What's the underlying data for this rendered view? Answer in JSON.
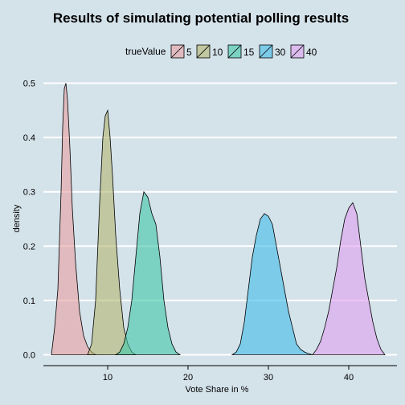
{
  "chart_data": {
    "type": "area",
    "title": "Results of simulating potential polling results",
    "xlabel": "Vote Share in %",
    "ylabel": "density",
    "xlim": [
      2,
      46
    ],
    "ylim": [
      -0.02,
      0.52
    ],
    "xticks": [
      10,
      20,
      30,
      40
    ],
    "yticks": [
      0.0,
      0.1,
      0.2,
      0.3,
      0.4,
      0.5
    ],
    "ytick_labels": [
      "0.0",
      "0.1",
      "0.2",
      "0.3",
      "0.4",
      "0.5"
    ],
    "grid": true,
    "legend": {
      "title": "trueValue",
      "placement": "top"
    },
    "series": [
      {
        "name": "5",
        "color": "#e8a0a0",
        "x": [
          3.0,
          3.4,
          3.8,
          4.2,
          4.4,
          4.6,
          4.8,
          5.0,
          5.3,
          5.6,
          6.0,
          6.5,
          7.0,
          7.5,
          8.0,
          8.5
        ],
        "y": [
          0.0,
          0.05,
          0.12,
          0.3,
          0.42,
          0.49,
          0.5,
          0.47,
          0.38,
          0.27,
          0.17,
          0.08,
          0.035,
          0.015,
          0.005,
          0.0
        ]
      },
      {
        "name": "10",
        "color": "#b4b870",
        "x": [
          7.5,
          8.0,
          8.5,
          9.0,
          9.4,
          9.7,
          10.0,
          10.3,
          10.6,
          11.0,
          11.5,
          12.0,
          12.5,
          13.0,
          13.5
        ],
        "y": [
          0.0,
          0.02,
          0.1,
          0.28,
          0.4,
          0.44,
          0.45,
          0.4,
          0.33,
          0.22,
          0.12,
          0.05,
          0.02,
          0.005,
          0.0
        ]
      },
      {
        "name": "15",
        "color": "#40c8a8",
        "x": [
          11.0,
          11.5,
          12.0,
          12.5,
          13.0,
          13.5,
          14.0,
          14.5,
          15.0,
          15.5,
          16.0,
          16.5,
          17.0,
          17.5,
          18.0,
          18.5,
          19.0
        ],
        "y": [
          0.0,
          0.005,
          0.02,
          0.05,
          0.1,
          0.18,
          0.26,
          0.3,
          0.29,
          0.26,
          0.24,
          0.18,
          0.1,
          0.05,
          0.02,
          0.005,
          0.0
        ]
      },
      {
        "name": "30",
        "color": "#40bce8",
        "x": [
          25.5,
          26.0,
          26.5,
          27.0,
          27.5,
          28.0,
          28.5,
          29.0,
          29.5,
          30.0,
          30.5,
          31.0,
          31.5,
          32.0,
          32.5,
          33.0,
          33.5,
          34.0,
          34.5,
          35.0,
          35.5
        ],
        "y": [
          0.0,
          0.005,
          0.02,
          0.06,
          0.12,
          0.18,
          0.22,
          0.25,
          0.26,
          0.255,
          0.24,
          0.2,
          0.16,
          0.12,
          0.08,
          0.05,
          0.02,
          0.01,
          0.005,
          0.002,
          0.0
        ]
      },
      {
        "name": "40",
        "color": "#e0a0f0",
        "x": [
          35.5,
          36.0,
          36.5,
          37.0,
          37.5,
          38.0,
          38.5,
          39.0,
          39.5,
          40.0,
          40.5,
          41.0,
          41.5,
          42.0,
          42.5,
          43.0,
          43.5,
          44.0,
          44.5
        ],
        "y": [
          0.0,
          0.01,
          0.025,
          0.05,
          0.08,
          0.12,
          0.16,
          0.21,
          0.25,
          0.27,
          0.28,
          0.26,
          0.2,
          0.14,
          0.1,
          0.06,
          0.03,
          0.01,
          0.0
        ]
      }
    ]
  }
}
